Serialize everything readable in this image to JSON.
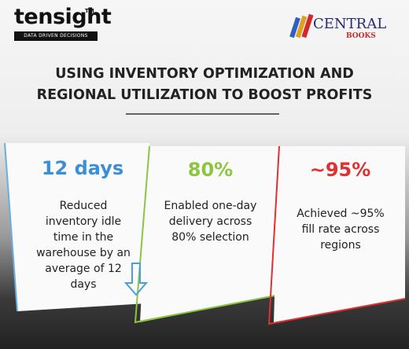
{
  "header": {
    "brand": "tensight",
    "trademark": "TM",
    "tagline": "DATA DRIVEN DECISIONS",
    "partner_line1": "CENTRAL",
    "partner_line2": "BOOKS"
  },
  "title": {
    "line1": "USING INVENTORY OPTIMIZATION AND",
    "line2": "REGIONAL UTILIZATION TO BOOST PROFITS"
  },
  "cards": [
    {
      "figure": "12 days",
      "text": "Reduced inventory idle time in the warehouse by an average of 12 days"
    },
    {
      "figure": "80%",
      "text": "Enabled one-day delivery across 80% selection"
    },
    {
      "figure": "~95%",
      "text": "Achieved ~95% fill rate across regions"
    }
  ]
}
